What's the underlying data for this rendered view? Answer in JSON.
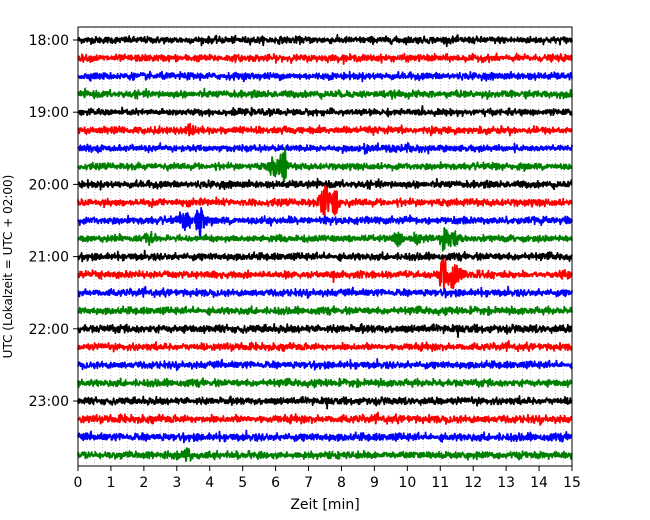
{
  "chart_data": {
    "type": "line",
    "title": "",
    "xlabel": "Zeit  [min]",
    "ylabel": "UTC (Lokalzeit = UTC + 02:00)",
    "xlim": [
      0,
      15
    ],
    "x_ticks": [
      0,
      1,
      2,
      3,
      4,
      5,
      6,
      7,
      8,
      9,
      10,
      11,
      12,
      13,
      14,
      15
    ],
    "y_tick_labels": [
      "18:00",
      "19:00",
      "20:00",
      "21:00",
      "22:00",
      "23:00"
    ],
    "y_tick_trace_index": [
      0,
      4,
      8,
      12,
      16,
      20
    ],
    "trace_minutes": 15,
    "trace_colors": [
      "#000000",
      "#ff0000",
      "#0000ff",
      "#008000"
    ],
    "traces": [
      {
        "start": "18:00",
        "color": "#000000",
        "noise": 0.22,
        "events": []
      },
      {
        "start": "18:15",
        "color": "#ff0000",
        "noise": 0.22,
        "events": []
      },
      {
        "start": "18:30",
        "color": "#0000ff",
        "noise": 0.22,
        "events": []
      },
      {
        "start": "18:45",
        "color": "#008000",
        "noise": 0.22,
        "events": []
      },
      {
        "start": "19:00",
        "color": "#000000",
        "noise": 0.2,
        "events": []
      },
      {
        "start": "19:15",
        "color": "#ff0000",
        "noise": 0.22,
        "events": [
          {
            "t": 3.4,
            "amp": 0.5,
            "width": 0.3
          }
        ]
      },
      {
        "start": "19:30",
        "color": "#0000ff",
        "noise": 0.2,
        "events": [
          {
            "t": 9.6,
            "amp": 0.35,
            "width": 1.2
          }
        ]
      },
      {
        "start": "19:45",
        "color": "#008000",
        "noise": 0.2,
        "events": [
          {
            "t": 6.0,
            "amp": 1.0,
            "width": 0.25
          },
          {
            "t": 6.25,
            "amp": 2.4,
            "width": 0.08
          }
        ]
      },
      {
        "start": "20:00",
        "color": "#000000",
        "noise": 0.22,
        "events": []
      },
      {
        "start": "20:15",
        "color": "#ff0000",
        "noise": 0.22,
        "events": [
          {
            "t": 7.5,
            "amp": 1.8,
            "width": 0.18
          },
          {
            "t": 7.8,
            "amp": 1.3,
            "width": 0.15
          }
        ]
      },
      {
        "start": "20:30",
        "color": "#0000ff",
        "noise": 0.22,
        "events": [
          {
            "t": 3.25,
            "amp": 1.1,
            "width": 0.2
          },
          {
            "t": 3.7,
            "amp": 2.2,
            "width": 0.12
          }
        ]
      },
      {
        "start": "20:45",
        "color": "#008000",
        "noise": 0.2,
        "events": [
          {
            "t": 2.1,
            "amp": 0.6,
            "width": 0.2
          },
          {
            "t": 9.7,
            "amp": 0.8,
            "width": 0.15
          },
          {
            "t": 10.3,
            "amp": 0.7,
            "width": 0.1
          },
          {
            "t": 11.1,
            "amp": 1.2,
            "width": 0.12
          },
          {
            "t": 11.4,
            "amp": 0.7,
            "width": 0.2
          }
        ]
      },
      {
        "start": "21:00",
        "color": "#000000",
        "noise": 0.22,
        "events": []
      },
      {
        "start": "21:15",
        "color": "#ff0000",
        "noise": 0.22,
        "events": [
          {
            "t": 11.1,
            "amp": 2.2,
            "width": 0.15
          },
          {
            "t": 11.4,
            "amp": 1.4,
            "width": 0.2
          }
        ]
      },
      {
        "start": "21:30",
        "color": "#0000ff",
        "noise": 0.22,
        "events": []
      },
      {
        "start": "21:45",
        "color": "#008000",
        "noise": 0.22,
        "events": []
      },
      {
        "start": "22:00",
        "color": "#000000",
        "noise": 0.24,
        "events": []
      },
      {
        "start": "22:15",
        "color": "#ff0000",
        "noise": 0.22,
        "events": []
      },
      {
        "start": "22:30",
        "color": "#0000ff",
        "noise": 0.22,
        "events": []
      },
      {
        "start": "22:45",
        "color": "#008000",
        "noise": 0.22,
        "events": []
      },
      {
        "start": "23:00",
        "color": "#000000",
        "noise": 0.22,
        "events": []
      },
      {
        "start": "23:15",
        "color": "#ff0000",
        "noise": 0.24,
        "events": []
      },
      {
        "start": "23:30",
        "color": "#0000ff",
        "noise": 0.24,
        "events": []
      },
      {
        "start": "23:45",
        "color": "#008000",
        "noise": 0.22,
        "events": [
          {
            "t": 3.3,
            "amp": 0.6,
            "width": 0.15
          }
        ]
      }
    ],
    "grid": {
      "vertical_minor": true,
      "horizontal": false
    },
    "legend": "none"
  }
}
